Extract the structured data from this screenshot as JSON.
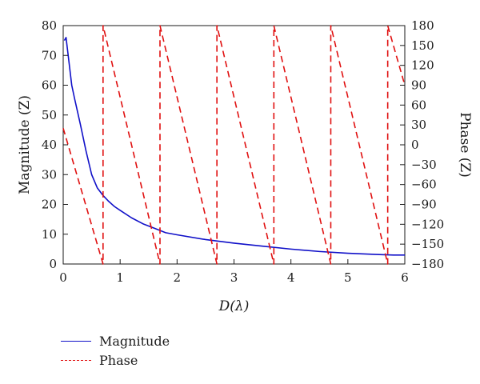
{
  "chart_data": {
    "type": "line",
    "xlabel": "D(λ)",
    "ylabel_left": "Magnitude (Z)",
    "ylabel_right": "Phase (Z)",
    "xlim": [
      0,
      6
    ],
    "ylim_left": [
      0,
      80
    ],
    "ylim_right": [
      -180,
      180
    ],
    "x_ticks": [
      "0",
      "1",
      "2",
      "3",
      "4",
      "5",
      "6"
    ],
    "y_ticks_left": [
      "0",
      "10",
      "20",
      "30",
      "40",
      "50",
      "60",
      "70",
      "80"
    ],
    "y_ticks_right": [
      "−180",
      "−150",
      "−120",
      "−90",
      "−60",
      "−30",
      "0",
      "30",
      "60",
      "90",
      "120",
      "150",
      "180"
    ],
    "grid": false,
    "legend_position": "bottom-left",
    "series": [
      {
        "name": "Magnitude",
        "axis": "left",
        "color": "#1010c8",
        "style": "solid",
        "points": [
          [
            0.02,
            75
          ],
          [
            0.05,
            76
          ],
          [
            0.1,
            68
          ],
          [
            0.15,
            60
          ],
          [
            0.2,
            55.5
          ],
          [
            0.3,
            47
          ],
          [
            0.4,
            38
          ],
          [
            0.5,
            30
          ],
          [
            0.6,
            25.5
          ],
          [
            0.7,
            23
          ],
          [
            0.8,
            21
          ],
          [
            0.9,
            19.3
          ],
          [
            1.0,
            18
          ],
          [
            1.2,
            15.5
          ],
          [
            1.4,
            13.5
          ],
          [
            1.6,
            12
          ],
          [
            1.8,
            10.5
          ],
          [
            2.0,
            9.8
          ],
          [
            2.5,
            8.2
          ],
          [
            3.0,
            7
          ],
          [
            3.5,
            6
          ],
          [
            4.0,
            5
          ],
          [
            4.5,
            4.2
          ],
          [
            5.0,
            3.6
          ],
          [
            5.5,
            3.2
          ],
          [
            5.8,
            3
          ],
          [
            6.0,
            3
          ]
        ]
      },
      {
        "name": "Phase",
        "axis": "right",
        "color": "#e01010",
        "style": "dashed",
        "points": [
          [
            0,
            25
          ],
          [
            0.7,
            -180
          ],
          [
            0.7,
            180
          ],
          [
            1.7,
            -180
          ],
          [
            1.7,
            180
          ],
          [
            2.7,
            -180
          ],
          [
            2.7,
            180
          ],
          [
            3.7,
            -180
          ],
          [
            3.7,
            180
          ],
          [
            4.7,
            -180
          ],
          [
            4.7,
            180
          ],
          [
            5.7,
            -180
          ],
          [
            5.7,
            180
          ],
          [
            6.0,
            90
          ]
        ]
      }
    ]
  },
  "legend": {
    "items": [
      {
        "label": "Magnitude"
      },
      {
        "label": "Phase"
      }
    ]
  }
}
